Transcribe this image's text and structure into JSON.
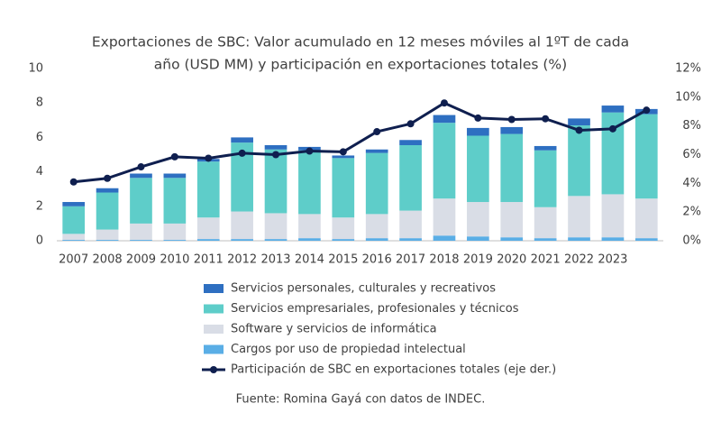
{
  "chart_data": {
    "type": "bar",
    "title": [
      "Exportaciones de SBC: Valor acumulado en 12 meses móviles al 1ºT de cada",
      "año (USD MM) y participación en exportaciones totales (%)"
    ],
    "categories": [
      "2007",
      "2008",
      "2009",
      "2010",
      "2011",
      "2012",
      "2013",
      "2014",
      "2015",
      "2016",
      "2017",
      "2018",
      "2019",
      "2020",
      "2021",
      "2022",
      "2023",
      null
    ],
    "series": [
      {
        "name": "Servicios personales, culturales y recreativos",
        "color": "#2e6fc1",
        "values": [
          0.25,
          0.25,
          0.25,
          0.25,
          0.15,
          0.3,
          0.25,
          0.2,
          0.15,
          0.2,
          0.3,
          0.45,
          0.45,
          0.4,
          0.25,
          0.4,
          0.4,
          0.3
        ]
      },
      {
        "name": "Servicios empresariales, profesionales y técnicos",
        "color": "#5ecdc9",
        "values": [
          1.6,
          2.15,
          2.65,
          2.65,
          3.25,
          4.0,
          3.7,
          3.7,
          3.45,
          3.55,
          3.8,
          4.4,
          3.85,
          3.95,
          3.3,
          4.1,
          4.75,
          4.9
        ]
      },
      {
        "name": "Software y servicios de informática",
        "color": "#d9dde6",
        "values": [
          0.35,
          0.6,
          0.95,
          0.95,
          1.25,
          1.6,
          1.5,
          1.4,
          1.25,
          1.4,
          1.6,
          2.15,
          2.0,
          2.05,
          1.8,
          2.4,
          2.5,
          2.3
        ]
      },
      {
        "name": "Cargos por uso de propiedad intelectual",
        "color": "#5aaee6",
        "values": [
          0.05,
          0.05,
          0.05,
          0.05,
          0.1,
          0.1,
          0.1,
          0.15,
          0.1,
          0.15,
          0.15,
          0.3,
          0.25,
          0.2,
          0.15,
          0.2,
          0.2,
          0.15
        ]
      },
      {
        "name": "Participación de SBC en exportaciones totales (eje der.)",
        "color": "#0f1f4f",
        "axis": "y2",
        "type": "line",
        "values": [
          4.1,
          4.35,
          5.15,
          5.85,
          5.75,
          6.1,
          6.0,
          6.25,
          6.2,
          7.6,
          8.15,
          9.6,
          8.55,
          8.45,
          8.5,
          7.7,
          7.8,
          9.1
        ]
      }
    ],
    "ylim": [
      0,
      10
    ],
    "yticks": [
      0,
      2,
      4,
      6,
      8,
      10
    ],
    "y2lim": [
      0,
      12
    ],
    "y2ticks": [
      {
        "value": 0,
        "label": "0%"
      },
      {
        "value": 2,
        "label": "2%"
      },
      {
        "value": 4,
        "label": "4%"
      },
      {
        "value": 6,
        "label": "6%"
      },
      {
        "value": 8,
        "label": "8%"
      },
      {
        "value": 10,
        "label": "10%"
      },
      {
        "value": 12,
        "label": "12%"
      }
    ],
    "stacked": true,
    "source": "Fuente: Romina Gayá con datos de INDEC."
  }
}
